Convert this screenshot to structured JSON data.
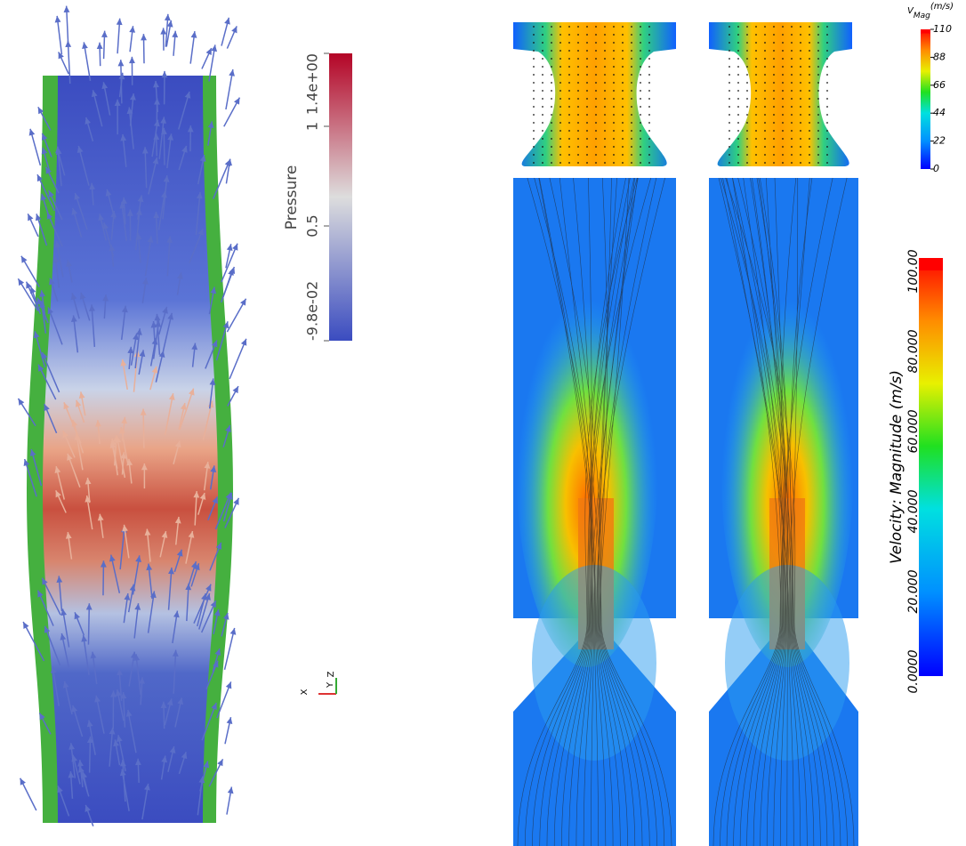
{
  "pressure_legend": {
    "title": "Pressure",
    "labels": [
      "1.4e+00",
      "1",
      "0.5",
      "-9.8e-02"
    ]
  },
  "axes_triad": {
    "labels": [
      "X",
      "Y",
      "Z"
    ]
  },
  "vmag_legend": {
    "title": "V",
    "subscript": "Mag",
    "unit": "(m/s)",
    "labels": [
      "110",
      "88",
      "66",
      "44",
      "22",
      "0"
    ]
  },
  "velocity_legend": {
    "title": "Velocity: Magnitude (m/s)",
    "labels": [
      "100.00",
      "80.000",
      "60.000",
      "40.000",
      "20.000",
      "0.0000"
    ]
  }
}
